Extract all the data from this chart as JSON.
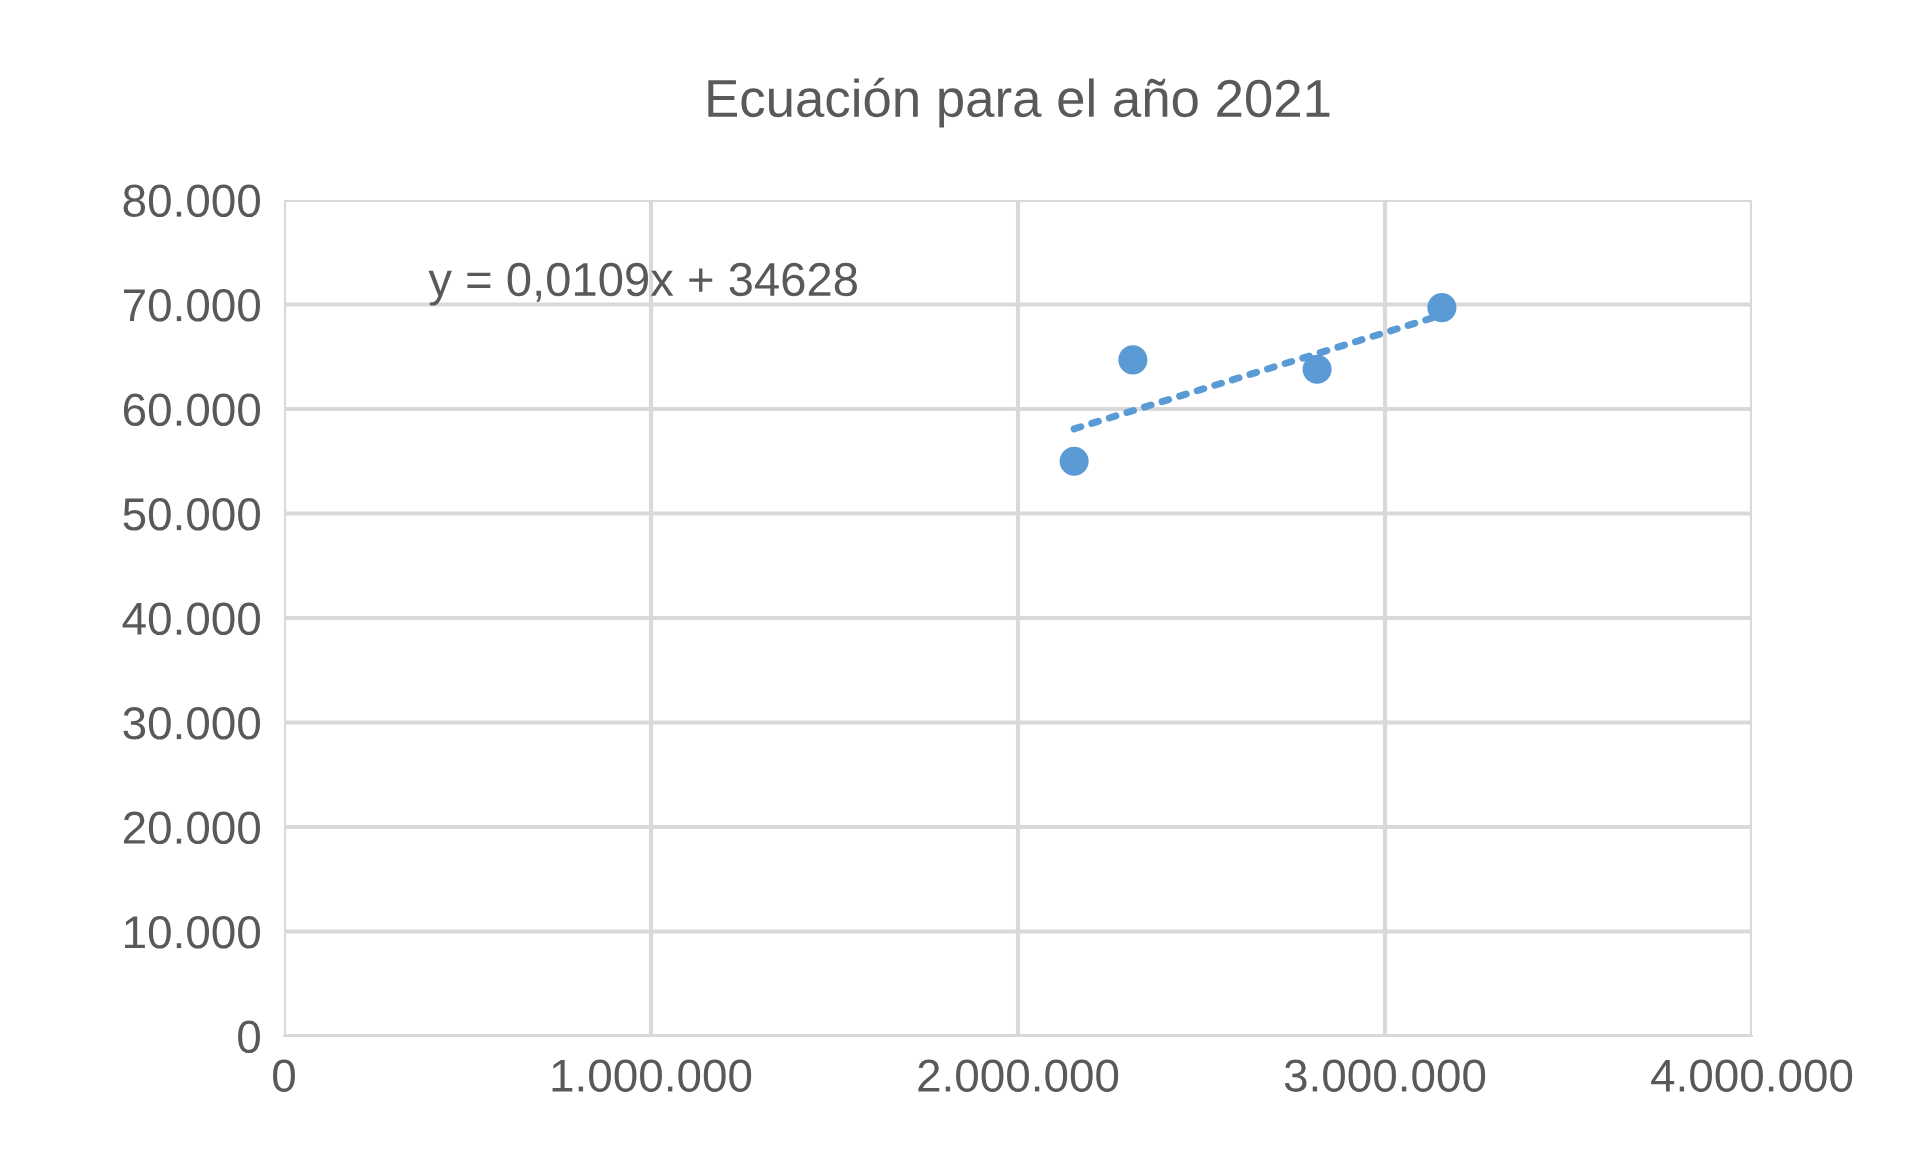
{
  "chart_data": {
    "type": "scatter",
    "title": "Ecuación para el año 2021",
    "series": [
      {
        "color": "#5b9bd5",
        "marker": "circle",
        "x": [
          2153000,
          2313000,
          2815000,
          3155000
        ],
        "values": [
          55000,
          64700,
          63800,
          69700
        ]
      },
      {
        "type": "line",
        "color": "#5b9bd5",
        "line_style": "dotted",
        "marker": "none",
        "x": [
          2153000,
          3155000
        ],
        "values": [
          58100,
          69000
        ]
      }
    ],
    "annotations": [
      "y = 0,0109x + 34628"
    ],
    "xlim": [
      0,
      4000000
    ],
    "xticks": [
      {
        "value": 0,
        "label": "0"
      },
      {
        "value": 1000000,
        "label": "1.000.000"
      },
      {
        "value": 2000000,
        "label": "2.000.000"
      },
      {
        "value": 3000000,
        "label": "3.000.000"
      },
      {
        "value": 4000000,
        "label": "4.000.000"
      }
    ],
    "ylim": [
      0,
      80000
    ],
    "yticks": [
      {
        "value": 0,
        "label": "0"
      },
      {
        "value": 10000,
        "label": "10.000"
      },
      {
        "value": 20000,
        "label": "20.000"
      },
      {
        "value": 30000,
        "label": "30.000"
      },
      {
        "value": 40000,
        "label": "40.000"
      },
      {
        "value": 50000,
        "label": "50.000"
      },
      {
        "value": 60000,
        "label": "60.000"
      },
      {
        "value": 70000,
        "label": "70.000"
      },
      {
        "value": 80000,
        "label": "80.000"
      }
    ],
    "grid": true
  }
}
